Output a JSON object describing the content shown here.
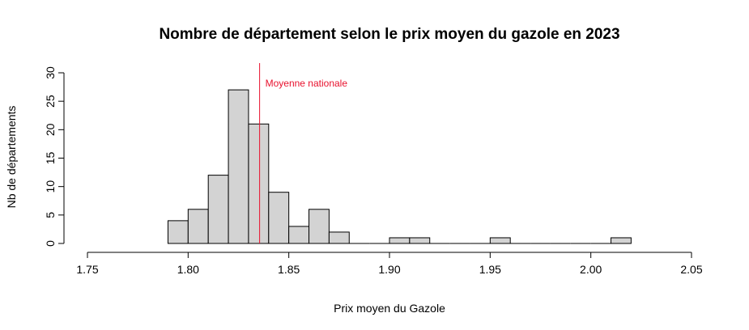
{
  "chart_data": {
    "type": "bar",
    "subtype": "histogram",
    "title": "Nombre de département selon le prix moyen du gazole en 2023",
    "xlabel": "Prix moyen du Gazole",
    "ylabel": "Nb de départements",
    "xlim": [
      1.75,
      2.05
    ],
    "ylim": [
      0,
      30
    ],
    "x_ticks": [
      "1.75",
      "1.80",
      "1.85",
      "1.90",
      "1.95",
      "2.00",
      "2.05"
    ],
    "y_ticks": [
      "0",
      "5",
      "10",
      "15",
      "20",
      "25",
      "30"
    ],
    "bin_width": 0.01,
    "bins": [
      {
        "start": 1.79,
        "end": 1.8,
        "count": 4
      },
      {
        "start": 1.8,
        "end": 1.81,
        "count": 6
      },
      {
        "start": 1.81,
        "end": 1.82,
        "count": 12
      },
      {
        "start": 1.82,
        "end": 1.83,
        "count": 27
      },
      {
        "start": 1.83,
        "end": 1.84,
        "count": 21
      },
      {
        "start": 1.84,
        "end": 1.85,
        "count": 9
      },
      {
        "start": 1.85,
        "end": 1.86,
        "count": 3
      },
      {
        "start": 1.86,
        "end": 1.87,
        "count": 6
      },
      {
        "start": 1.87,
        "end": 1.88,
        "count": 2
      },
      {
        "start": 1.88,
        "end": 1.89,
        "count": 0
      },
      {
        "start": 1.89,
        "end": 1.9,
        "count": 0
      },
      {
        "start": 1.9,
        "end": 1.91,
        "count": 1
      },
      {
        "start": 1.91,
        "end": 1.92,
        "count": 1
      },
      {
        "start": 1.92,
        "end": 1.93,
        "count": 0
      },
      {
        "start": 1.93,
        "end": 1.94,
        "count": 0
      },
      {
        "start": 1.94,
        "end": 1.95,
        "count": 0
      },
      {
        "start": 1.95,
        "end": 1.96,
        "count": 1
      },
      {
        "start": 1.96,
        "end": 1.97,
        "count": 0
      },
      {
        "start": 1.97,
        "end": 1.98,
        "count": 0
      },
      {
        "start": 1.98,
        "end": 1.99,
        "count": 0
      },
      {
        "start": 1.99,
        "end": 2.0,
        "count": 0
      },
      {
        "start": 2.0,
        "end": 2.01,
        "count": 0
      },
      {
        "start": 2.01,
        "end": 2.02,
        "count": 1
      }
    ],
    "bar_color": "#d3d3d3",
    "bar_border_color": "#000000",
    "reference_line": {
      "x": 1.8355,
      "label": "Moyenne nationale",
      "color": "#e8112d"
    },
    "grid": false,
    "legend": "none"
  }
}
